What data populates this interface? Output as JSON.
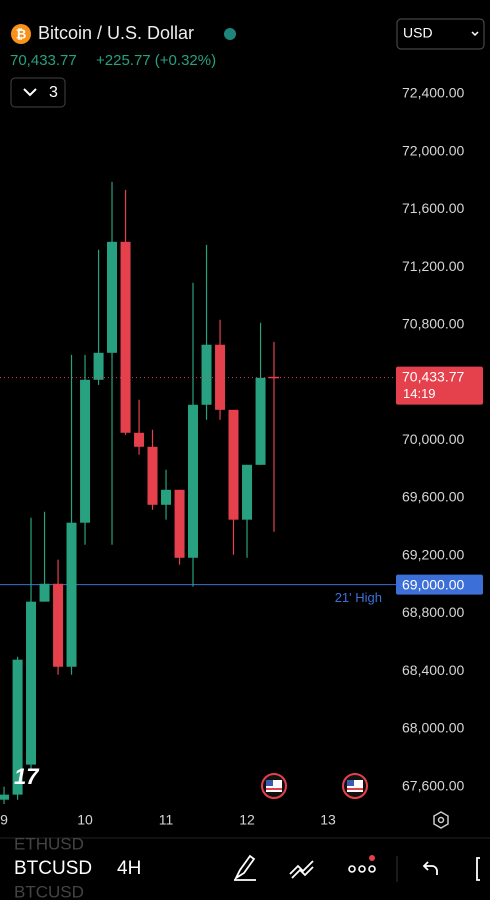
{
  "header": {
    "title": "Bitcoin / U.S. Dollar",
    "icon": "₿",
    "price": "70,433.77",
    "change": "+225.77 (+0.32%)",
    "indicators": "3",
    "currency": "USD"
  },
  "toolbar": {
    "prev_symbol": "ETHUSD",
    "symbol": "BTCUSD",
    "interval": "4H",
    "next_symbol": "BTCUSD"
  },
  "chart_data": {
    "type": "candlestick",
    "x": [
      9,
      9.167,
      9.333,
      9.5,
      9.667,
      9.833,
      10,
      10.167,
      10.333,
      10.5,
      10.667,
      10.833,
      11,
      11.167,
      11.333,
      11.5,
      11.667,
      11.833,
      12,
      12.167,
      12.333
    ],
    "open": [
      67510,
      67545,
      67753,
      68882,
      69006,
      68431,
      69429,
      70419,
      70606,
      71375,
      70052,
      69955,
      69553,
      69657,
      69186,
      70246,
      70662,
      70211,
      69450,
      69830,
      70440
    ],
    "high": [
      67600,
      68500,
      69463,
      69505,
      69173,
      70592,
      70592,
      71320,
      71790,
      71735,
      70281,
      70073,
      69796,
      69657,
      71091,
      71354,
      70835,
      70211,
      69830,
      70814,
      70682
    ],
    "low": [
      67480,
      67510,
      67718,
      68882,
      68376,
      68376,
      69276,
      70384,
      69276,
      70038,
      69900,
      69519,
      69450,
      69138,
      68986,
      70142,
      70142,
      69207,
      69186,
      69830,
      69366
    ],
    "close": [
      67545,
      68480,
      68882,
      69006,
      68431,
      69429,
      70419,
      70606,
      71375,
      70052,
      69955,
      69553,
      69657,
      69186,
      70246,
      70662,
      70211,
      69450,
      69830,
      70433,
      70433.77
    ],
    "up_color": "#27a17f",
    "down_color": "#e5414d",
    "xlim": [
      8.95,
      13.79
    ],
    "xticks": [
      9,
      10,
      11,
      12,
      13
    ],
    "ylim": [
      67300,
      72600
    ],
    "yticks": [
      {
        "value": 67600,
        "label": "67,600.00"
      },
      {
        "value": 68000,
        "label": "68,000.00"
      },
      {
        "value": 68400,
        "label": "68,400.00"
      },
      {
        "value": 68800,
        "label": "68,800.00"
      },
      {
        "value": 69200,
        "label": "69,200.00"
      },
      {
        "value": 69600,
        "label": "69,600.00"
      },
      {
        "value": 70000,
        "label": "70,000.00"
      },
      {
        "value": 70800,
        "label": "70,800.00"
      },
      {
        "value": 71200,
        "label": "71,200.00"
      },
      {
        "value": 71600,
        "label": "71,600.00"
      },
      {
        "value": 72000,
        "label": "72,000.00"
      },
      {
        "value": 72400,
        "label": "72,400.00"
      }
    ],
    "last_price": {
      "value": 70433.77,
      "label": "70,433.77",
      "countdown": "14:19",
      "color": "#e5414d"
    },
    "level": {
      "value": 69000,
      "label": "69,000.00",
      "name": "21' High",
      "color": "#3d6fd8"
    }
  }
}
